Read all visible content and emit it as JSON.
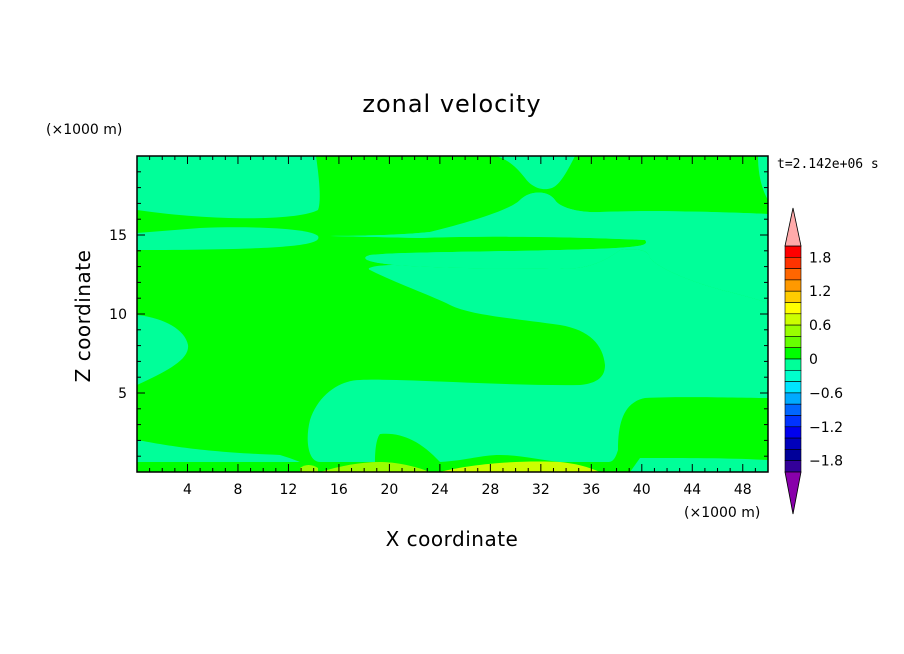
{
  "chart_data": {
    "type": "heatmap",
    "title": "zonal velocity",
    "xlabel": "X coordinate",
    "ylabel": "Z coordinate",
    "x_unit": "(×1000 m)",
    "y_unit": "(×1000 m)",
    "time_label": "t=2.142e+06 s",
    "xlim": [
      0,
      50
    ],
    "ylim": [
      0,
      20
    ],
    "x_ticks": [
      4,
      8,
      12,
      16,
      20,
      24,
      28,
      32,
      36,
      40,
      44,
      48
    ],
    "y_ticks": [
      5,
      10,
      15
    ],
    "colorbar": {
      "labels": [
        "1.8",
        "1.2",
        "0.6",
        "0",
        "−0.6",
        "−1.2",
        "−1.8"
      ],
      "label_values": [
        1.8,
        1.2,
        0.6,
        0,
        -0.6,
        -1.2,
        -1.8
      ],
      "min": -2.0,
      "max": 2.0,
      "step": 0.2,
      "colors_top_to_bottom": [
        "#ff0000",
        "#ff3300",
        "#ff6600",
        "#ff9900",
        "#ffcc00",
        "#ffff00",
        "#ccff00",
        "#99ff00",
        "#66ff00",
        "#00ff00",
        "#00ff99",
        "#00ffcc",
        "#00e5ff",
        "#00aaff",
        "#0066ff",
        "#0033ff",
        "#0000ee",
        "#0000bb",
        "#000099",
        "#330099"
      ],
      "over_color": "#ffaaaa",
      "under_color": "#8800aa"
    },
    "background_color": "#00ff00",
    "field_colors": {
      "slightly_negative": "#00ff99",
      "slightly_positive": "#00ff00",
      "near_bottom_positive": "#99ff00",
      "near_bottom_strong": "#ccff00"
    }
  }
}
